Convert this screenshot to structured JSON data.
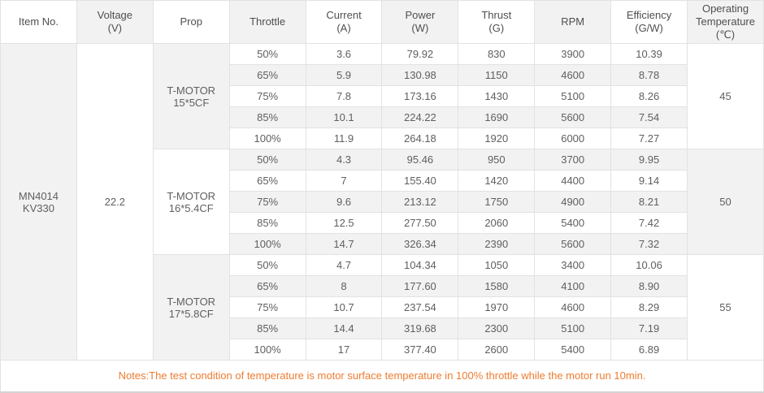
{
  "chart_data": {
    "type": "table",
    "title": "MN4014 KV330 motor propulsion test data",
    "headers": {
      "item_no": "Item No.",
      "voltage": "Voltage\n(V)",
      "prop": "Prop",
      "throttle": "Throttle",
      "current": "Current\n(A)",
      "power": "Power\n(W)",
      "thrust": "Thrust\n(G)",
      "rpm": "RPM",
      "efficiency": "Efficiency\n(G/W)",
      "operating_temperature": "Operating\nTemperature\n(℃)"
    },
    "item_no": "MN4014\nKV330",
    "voltage": "22.2",
    "groups": [
      {
        "prop": "T-MOTOR\n15*5CF",
        "operating_temperature": "45",
        "rows": [
          {
            "throttle": "50%",
            "current": "3.6",
            "power": "79.92",
            "thrust": "830",
            "rpm": "3900",
            "efficiency": "10.39"
          },
          {
            "throttle": "65%",
            "current": "5.9",
            "power": "130.98",
            "thrust": "1150",
            "rpm": "4600",
            "efficiency": "8.78"
          },
          {
            "throttle": "75%",
            "current": "7.8",
            "power": "173.16",
            "thrust": "1430",
            "rpm": "5100",
            "efficiency": "8.26"
          },
          {
            "throttle": "85%",
            "current": "10.1",
            "power": "224.22",
            "thrust": "1690",
            "rpm": "5600",
            "efficiency": "7.54"
          },
          {
            "throttle": "100%",
            "current": "11.9",
            "power": "264.18",
            "thrust": "1920",
            "rpm": "6000",
            "efficiency": "7.27"
          }
        ]
      },
      {
        "prop": "T-MOTOR\n16*5.4CF",
        "operating_temperature": "50",
        "rows": [
          {
            "throttle": "50%",
            "current": "4.3",
            "power": "95.46",
            "thrust": "950",
            "rpm": "3700",
            "efficiency": "9.95"
          },
          {
            "throttle": "65%",
            "current": "7",
            "power": "155.40",
            "thrust": "1420",
            "rpm": "4400",
            "efficiency": "9.14"
          },
          {
            "throttle": "75%",
            "current": "9.6",
            "power": "213.12",
            "thrust": "1750",
            "rpm": "4900",
            "efficiency": "8.21"
          },
          {
            "throttle": "85%",
            "current": "12.5",
            "power": "277.50",
            "thrust": "2060",
            "rpm": "5400",
            "efficiency": "7.42"
          },
          {
            "throttle": "100%",
            "current": "14.7",
            "power": "326.34",
            "thrust": "2390",
            "rpm": "5600",
            "efficiency": "7.32"
          }
        ]
      },
      {
        "prop": "T-MOTOR\n17*5.8CF",
        "operating_temperature": "55",
        "rows": [
          {
            "throttle": "50%",
            "current": "4.7",
            "power": "104.34",
            "thrust": "1050",
            "rpm": "3400",
            "efficiency": "10.06"
          },
          {
            "throttle": "65%",
            "current": "8",
            "power": "177.60",
            "thrust": "1580",
            "rpm": "4100",
            "efficiency": "8.90"
          },
          {
            "throttle": "75%",
            "current": "10.7",
            "power": "237.54",
            "thrust": "1970",
            "rpm": "4600",
            "efficiency": "8.29"
          },
          {
            "throttle": "85%",
            "current": "14.4",
            "power": "319.68",
            "thrust": "2300",
            "rpm": "5100",
            "efficiency": "7.19"
          },
          {
            "throttle": "100%",
            "current": "17",
            "power": "377.40",
            "thrust": "2600",
            "rpm": "5400",
            "efficiency": "6.89"
          }
        ]
      }
    ],
    "notes": "Notes:The test condition of temperature is motor surface temperature in 100% throttle while the motor run 10min.",
    "colors": {
      "stripe_gray": "#f2f2f2",
      "border": "#e2e2e2",
      "text": "#5f5f5f",
      "notes_orange": "#ed7d31"
    }
  }
}
